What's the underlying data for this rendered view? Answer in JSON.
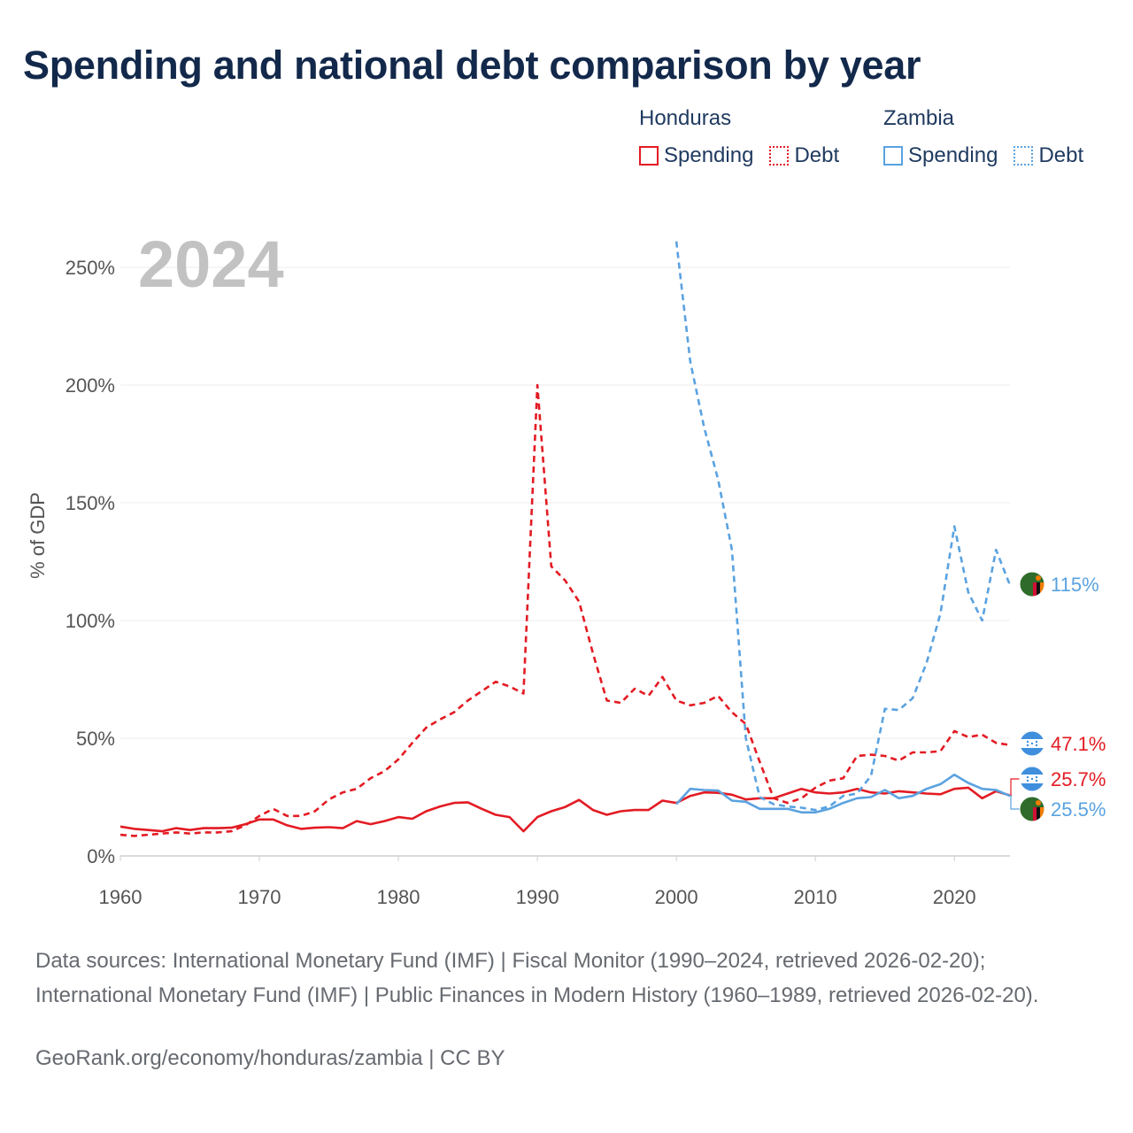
{
  "title": "Spending and national debt comparison by year",
  "legend": {
    "groups": [
      {
        "name": "Honduras",
        "color": "#e31b23",
        "spending_label": "Spending",
        "debt_label": "Debt"
      },
      {
        "name": "Zambia",
        "color": "#5aa2e0",
        "spending_label": "Spending",
        "debt_label": "Debt"
      }
    ]
  },
  "year_watermark": "2024",
  "chart_data": {
    "type": "line",
    "ylabel": "% of GDP",
    "xlabel": "",
    "xlim": [
      1960,
      2024
    ],
    "ylim": [
      0,
      250
    ],
    "x_ticks": [
      1960,
      1970,
      1980,
      1990,
      2000,
      2010,
      2020
    ],
    "x_tick_labels": [
      "1960",
      "1970",
      "1980",
      "1990",
      "2000",
      "2010",
      "2020"
    ],
    "y_ticks": [
      0,
      50,
      100,
      150,
      200,
      250
    ],
    "y_tick_labels": [
      "0%",
      "50%",
      "100%",
      "150%",
      "200%",
      "250%"
    ],
    "grid": true,
    "series": [
      {
        "name": "Honduras Spending",
        "country": "Honduras",
        "measure": "Spending",
        "color": "#e31b23",
        "style": "solid",
        "x": [
          1960,
          1961,
          1962,
          1963,
          1964,
          1965,
          1966,
          1967,
          1968,
          1969,
          1970,
          1971,
          1972,
          1973,
          1974,
          1975,
          1976,
          1977,
          1978,
          1979,
          1980,
          1981,
          1982,
          1983,
          1984,
          1985,
          1986,
          1987,
          1988,
          1989,
          1990,
          1991,
          1992,
          1993,
          1994,
          1995,
          1996,
          1997,
          1998,
          1999,
          2000,
          2001,
          2002,
          2003,
          2004,
          2005,
          2006,
          2007,
          2008,
          2009,
          2010,
          2011,
          2012,
          2013,
          2014,
          2015,
          2016,
          2017,
          2018,
          2019,
          2020,
          2021,
          2022,
          2023,
          2024
        ],
        "values": [
          12.5,
          11.5,
          11,
          10.5,
          11.8,
          11,
          11.8,
          11.8,
          12,
          13.5,
          15.5,
          15.5,
          13,
          11.5,
          12,
          12.2,
          11.8,
          14.8,
          13.5,
          14.8,
          16.5,
          15.8,
          19,
          21,
          22.5,
          22.8,
          20,
          17.5,
          16.5,
          10.5,
          16.5,
          19,
          20.8,
          23.8,
          19.5,
          17.5,
          19,
          19.5,
          19.5,
          23.5,
          22.5,
          25.5,
          27,
          26.8,
          26,
          24,
          24.5,
          24.5,
          26.5,
          28.5,
          27,
          26.5,
          27,
          28.5,
          27,
          26.5,
          27.5,
          27,
          26.5,
          26.2,
          28.5,
          29,
          24.5,
          27.5,
          25.7
        ],
        "end_label": "25.7%"
      },
      {
        "name": "Honduras Debt",
        "country": "Honduras",
        "measure": "Debt",
        "color": "#e31b23",
        "style": "dashed",
        "x": [
          1960,
          1961,
          1962,
          1963,
          1964,
          1965,
          1966,
          1967,
          1968,
          1969,
          1970,
          1971,
          1972,
          1973,
          1974,
          1975,
          1976,
          1977,
          1978,
          1979,
          1980,
          1981,
          1982,
          1983,
          1984,
          1985,
          1986,
          1987,
          1988,
          1989,
          1990,
          1991,
          1992,
          1993,
          1994,
          1995,
          1996,
          1997,
          1998,
          1999,
          2000,
          2001,
          2002,
          2003,
          2004,
          2005,
          2006,
          2007,
          2008,
          2009,
          2010,
          2011,
          2012,
          2013,
          2014,
          2015,
          2016,
          2017,
          2018,
          2019,
          2020,
          2021,
          2022,
          2023,
          2024
        ],
        "values": [
          9,
          8.5,
          9,
          9.5,
          10,
          9.5,
          10,
          10,
          10.5,
          13,
          17,
          20,
          17,
          17,
          19,
          24,
          27,
          28.5,
          33,
          36,
          41,
          48,
          54.5,
          58,
          61,
          66,
          70,
          74,
          72,
          69,
          200,
          123,
          117,
          108,
          86,
          66,
          65,
          71,
          68,
          76,
          66,
          64,
          65,
          68,
          61,
          56,
          40,
          24.5,
          22.5,
          24.5,
          29,
          32,
          33,
          42.5,
          43,
          42.5,
          40.5,
          44,
          44,
          44.5,
          53,
          50.5,
          51.5,
          48,
          47.1
        ],
        "end_label": "47.1%"
      },
      {
        "name": "Zambia Spending",
        "country": "Zambia",
        "measure": "Spending",
        "color": "#5aa2e0",
        "style": "solid",
        "x": [
          2000,
          2001,
          2002,
          2003,
          2004,
          2005,
          2006,
          2007,
          2008,
          2009,
          2010,
          2011,
          2012,
          2013,
          2014,
          2015,
          2016,
          2017,
          2018,
          2019,
          2020,
          2021,
          2022,
          2023,
          2024
        ],
        "values": [
          22,
          28.5,
          28,
          27.8,
          23.5,
          23,
          20,
          20,
          20,
          18.5,
          18.5,
          20,
          22.5,
          24.5,
          25,
          28,
          24.5,
          25.5,
          28.5,
          30.5,
          34.5,
          31,
          28.5,
          28,
          25.5
        ],
        "end_label": "25.5%"
      },
      {
        "name": "Zambia Debt",
        "country": "Zambia",
        "measure": "Debt",
        "color": "#5aa2e0",
        "style": "dashed",
        "x": [
          2000,
          2001,
          2002,
          2003,
          2004,
          2005,
          2006,
          2007,
          2008,
          2009,
          2010,
          2011,
          2012,
          2013,
          2014,
          2015,
          2016,
          2017,
          2018,
          2019,
          2020,
          2021,
          2022,
          2023,
          2024
        ],
        "values": [
          261,
          210,
          182,
          160,
          130,
          50,
          25,
          22,
          21,
          20.5,
          19.5,
          21,
          25.5,
          26.5,
          34,
          62.5,
          62,
          67,
          82,
          103,
          140,
          112,
          100,
          130,
          115
        ],
        "end_label": "115%"
      }
    ]
  },
  "sources_text": "Data sources: International Monetary Fund (IMF) | Fiscal Monitor (1990–2024, retrieved 2026-02-20); International Monetary Fund (IMF) | Public Finances in Modern History (1960–1989, retrieved 2026-02-20).",
  "credit_text": "GeoRank.org/economy/honduras/zambia | CC BY"
}
